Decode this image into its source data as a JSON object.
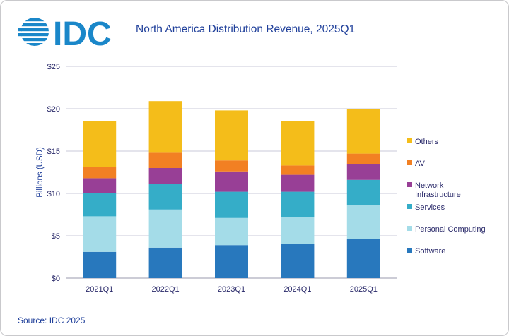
{
  "logo_text": "IDC",
  "title": "North America Distribution Revenue, 2025Q1",
  "source": "Source: IDC 2025",
  "chart_data": {
    "type": "bar",
    "stacked": true,
    "title": "North America Distribution Revenue, 2025Q1",
    "xlabel": "",
    "ylabel": "Billions (USD)",
    "ylim": [
      0,
      25
    ],
    "yticks": [
      0,
      5,
      10,
      15,
      20,
      25
    ],
    "ytick_labels": [
      "$0",
      "$5",
      "$10",
      "$15",
      "$20",
      "$25"
    ],
    "grid": true,
    "legend_position": "right",
    "categories": [
      "2021Q1",
      "2022Q1",
      "2023Q1",
      "2024Q1",
      "2025Q1"
    ],
    "series": [
      {
        "name": "Software",
        "color": "#2878bd",
        "values": [
          3.1,
          3.6,
          3.9,
          4.0,
          4.6
        ]
      },
      {
        "name": "Personal Computing",
        "color": "#a4dce8",
        "values": [
          4.2,
          4.5,
          3.2,
          3.2,
          4.0
        ]
      },
      {
        "name": "Services",
        "color": "#35adc8",
        "values": [
          2.7,
          3.0,
          3.1,
          3.0,
          3.0
        ]
      },
      {
        "name": "Network Infrastructure",
        "color": "#983f96",
        "values": [
          1.8,
          1.9,
          2.4,
          2.0,
          1.9
        ]
      },
      {
        "name": "AV",
        "color": "#f28023",
        "values": [
          1.3,
          1.8,
          1.3,
          1.1,
          1.2
        ]
      },
      {
        "name": "Others",
        "color": "#f4bd1a",
        "values": [
          5.4,
          6.1,
          5.9,
          5.2,
          5.3
        ]
      }
    ]
  },
  "colors": {
    "brand": "#1f3f9a",
    "logo_blue": "#1a87c9",
    "grid": "#c8c8d8",
    "axis_text": "#2a2a6a"
  }
}
